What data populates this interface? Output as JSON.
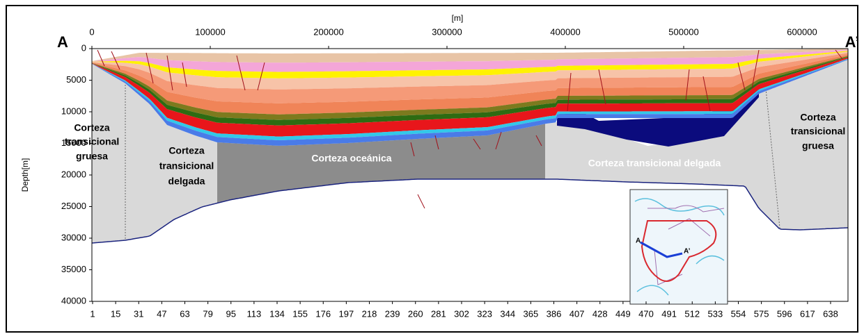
{
  "header": {
    "x_unit": "[m]",
    "y_label": "Depth[m]",
    "start": "A",
    "end": "A’"
  },
  "top_ticks": [
    0,
    100000,
    200000,
    300000,
    400000,
    500000,
    600000
  ],
  "depth_ticks": [
    0,
    5000,
    10000,
    15000,
    20000,
    25000,
    30000,
    35000,
    40000
  ],
  "stations": [
    1,
    15,
    31,
    47,
    63,
    79,
    95,
    113,
    134,
    155,
    176,
    197,
    218,
    239,
    260,
    281,
    302,
    323,
    344,
    365,
    386,
    407,
    428,
    449,
    470,
    491,
    512,
    533,
    554,
    575,
    596,
    617,
    638
  ],
  "regions": {
    "left_thick": [
      "Corteza",
      "transicional",
      "gruesa"
    ],
    "left_thin": [
      "Corteza",
      "transicional",
      "delgada"
    ],
    "oceanic": "Corteza oceánica",
    "right_thin": "Corteza transicional delgada",
    "right_thick": [
      "Corteza",
      "transicional",
      "gruesa"
    ]
  },
  "inset": {
    "start": "A",
    "end": "A’"
  }
}
